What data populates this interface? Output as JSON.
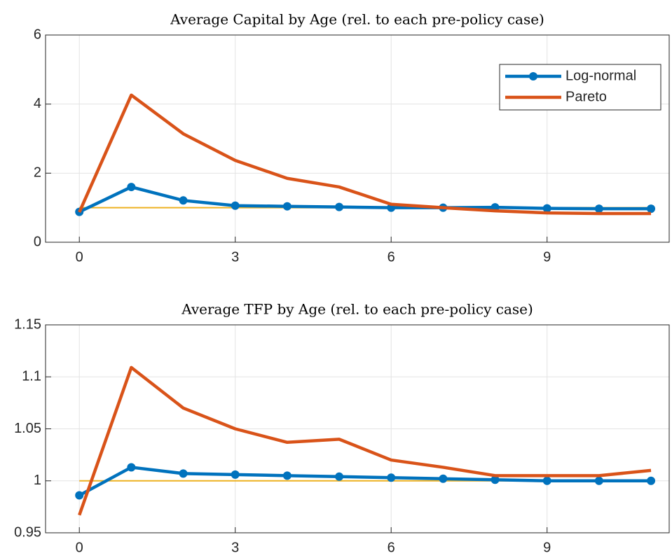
{
  "chart_data": [
    {
      "type": "line",
      "title": "Average Capital by Age (rel. to each pre-policy case)",
      "x": [
        0,
        1,
        2,
        3,
        4,
        5,
        6,
        7,
        8,
        9,
        10,
        11
      ],
      "series": [
        {
          "name": "Log-normal",
          "color": "#0072BD",
          "marker": "circle",
          "values": [
            0.88,
            1.6,
            1.21,
            1.06,
            1.04,
            1.02,
            1.0,
            1.0,
            1.01,
            0.98,
            0.97,
            0.97
          ]
        },
        {
          "name": "Pareto",
          "color": "#D95319",
          "values": [
            0.87,
            4.26,
            3.14,
            2.37,
            1.85,
            1.6,
            1.1,
            1.0,
            0.91,
            0.85,
            0.83,
            0.83
          ]
        }
      ],
      "reference_line": {
        "value": 1,
        "color": "#EDB120"
      },
      "xlim": [
        -0.65,
        11.35
      ],
      "ylim": [
        0,
        6
      ],
      "xticks": [
        0,
        3,
        6,
        9
      ],
      "yticks": [
        0,
        2,
        4,
        6
      ],
      "grid": true,
      "legend": "upper right"
    },
    {
      "type": "line",
      "title": "Average TFP by Age (rel. to each pre-policy case)",
      "x": [
        0,
        1,
        2,
        3,
        4,
        5,
        6,
        7,
        8,
        9,
        10,
        11
      ],
      "series": [
        {
          "name": "Log-normal",
          "color": "#0072BD",
          "marker": "circle",
          "values": [
            0.986,
            1.013,
            1.007,
            1.006,
            1.005,
            1.004,
            1.003,
            1.002,
            1.001,
            1.0,
            1.0,
            1.0
          ]
        },
        {
          "name": "Pareto",
          "color": "#D95319",
          "values": [
            0.967,
            1.109,
            1.07,
            1.05,
            1.037,
            1.04,
            1.02,
            1.013,
            1.005,
            1.005,
            1.005,
            1.01
          ]
        }
      ],
      "reference_line": {
        "value": 1,
        "color": "#EDB120"
      },
      "xlim": [
        -0.65,
        11.35
      ],
      "ylim": [
        0.95,
        1.15
      ],
      "xticks": [
        0,
        3,
        6,
        9
      ],
      "yticks": [
        0.95,
        1,
        1.05,
        1.1,
        1.15
      ],
      "grid": true
    }
  ]
}
